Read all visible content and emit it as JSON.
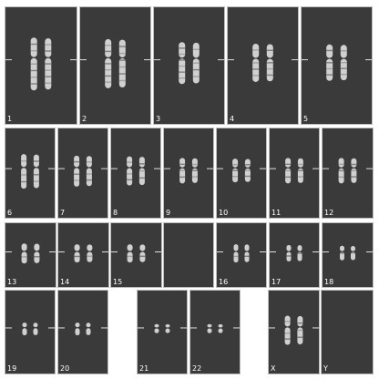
{
  "karyogram": {
    "background": "#3a3a3a",
    "frame_color": "#bdbdbd",
    "chromosome_color": "#d0d0d0",
    "cells": [
      {
        "label": "1"
      },
      {
        "label": "2"
      },
      {
        "label": "3"
      },
      {
        "label": "4"
      },
      {
        "label": "5"
      },
      {
        "label": "6"
      },
      {
        "label": "7"
      },
      {
        "label": "8"
      },
      {
        "label": "9"
      },
      {
        "label": "10"
      },
      {
        "label": "11"
      },
      {
        "label": "12"
      },
      {
        "label": "13"
      },
      {
        "label": "14"
      },
      {
        "label": "15"
      },
      {
        "label": ""
      },
      {
        "label": "16"
      },
      {
        "label": "17"
      },
      {
        "label": "18"
      },
      {
        "label": "19"
      },
      {
        "label": "20"
      },
      {
        "label": "21"
      },
      {
        "label": "22"
      },
      {
        "label": "X"
      },
      {
        "label": "Y"
      }
    ]
  }
}
